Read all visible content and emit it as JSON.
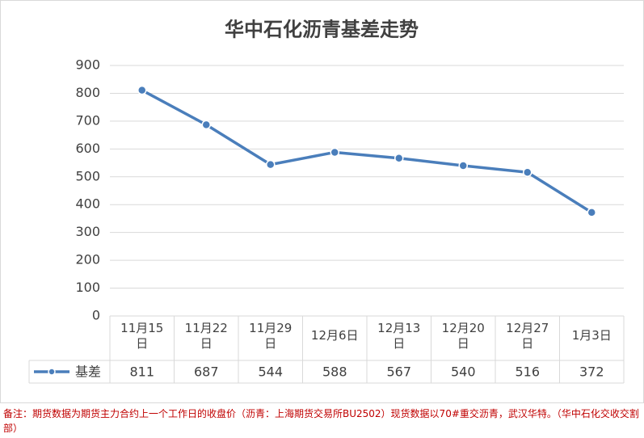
{
  "chart_data": {
    "type": "line",
    "title": "华中石化沥青基差走势",
    "categories": [
      "11月15日",
      "11月22日",
      "11月29日",
      "12月6日",
      "12月13日",
      "12月20日",
      "12月27日",
      "1月3日"
    ],
    "series": [
      {
        "name": "基差",
        "color": "#4a7ebb",
        "values": [
          811,
          687,
          544,
          588,
          567,
          540,
          516,
          372
        ]
      }
    ],
    "ylim": [
      0,
      900
    ],
    "yticks": [
      0,
      100,
      200,
      300,
      400,
      500,
      600,
      700,
      800,
      900
    ],
    "grid": true,
    "note": "备注：期货数据为期货主力合约上一个工作日的收盘价（沥青：上海期货交易所BU2502）现货数据以70#重交沥青，武汉华特。（华中石化交收交割部）"
  }
}
